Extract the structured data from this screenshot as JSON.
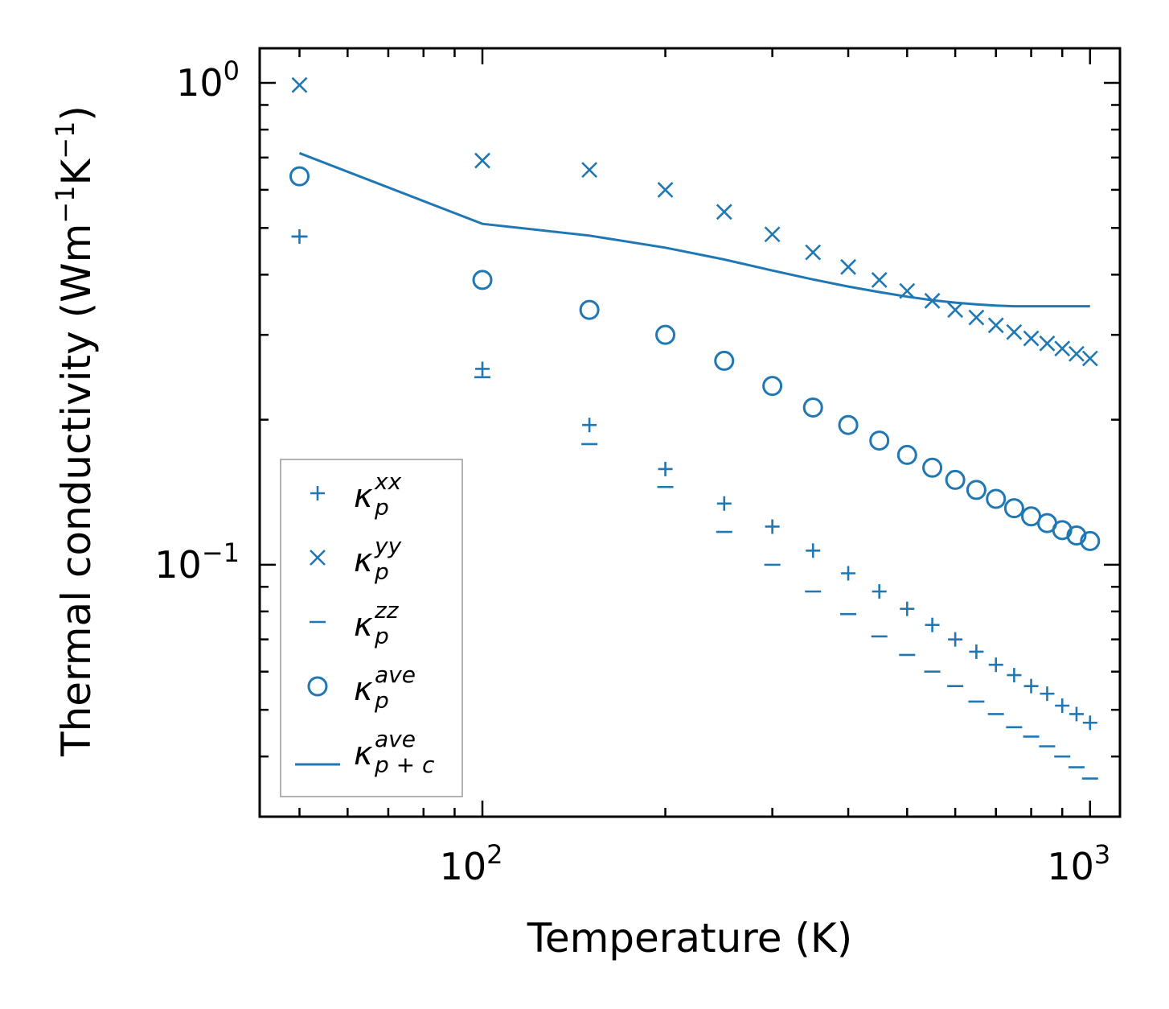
{
  "chart_data": {
    "type": "scatter",
    "xscale": "log",
    "yscale": "log",
    "xlabel": "Temperature (K)",
    "ylabel_main": "Thermal conductivity (Wm",
    "ylabel_sup1": "−1",
    "ylabel_mid": "K",
    "ylabel_sup2": "−1",
    "ylabel_end": ")",
    "xlim": [
      43,
      1120
    ],
    "ylim": [
      0.03,
      1.18
    ],
    "xticks": [
      {
        "value": 100,
        "base": "10",
        "exp": "2"
      },
      {
        "value": 1000,
        "base": "10",
        "exp": "3"
      }
    ],
    "yticks": [
      {
        "value": 0.1,
        "base": "10",
        "exp": "−1"
      },
      {
        "value": 1.0,
        "base": "10",
        "exp": "0"
      }
    ],
    "x": [
      50,
      100,
      150,
      200,
      250,
      300,
      350,
      400,
      450,
      500,
      550,
      600,
      650,
      700,
      750,
      800,
      850,
      900,
      950,
      1000
    ],
    "series": [
      {
        "key": "xx",
        "marker": "plus",
        "values": [
          0.48,
          0.255,
          0.195,
          0.158,
          0.134,
          0.12,
          0.107,
          0.096,
          0.088,
          0.081,
          0.075,
          0.07,
          0.066,
          0.062,
          0.059,
          0.056,
          0.054,
          0.051,
          0.049,
          0.047
        ]
      },
      {
        "key": "yy",
        "marker": "x",
        "values": [
          0.99,
          0.69,
          0.66,
          0.6,
          0.54,
          0.485,
          0.445,
          0.415,
          0.39,
          0.37,
          0.353,
          0.338,
          0.326,
          0.314,
          0.304,
          0.295,
          0.288,
          0.281,
          0.274,
          0.268
        ]
      },
      {
        "key": "zz",
        "marker": "minus",
        "values": [
          0.48,
          0.245,
          0.178,
          0.145,
          0.117,
          0.1,
          0.088,
          0.079,
          0.071,
          0.065,
          0.06,
          0.056,
          0.052,
          0.049,
          0.046,
          0.044,
          0.042,
          0.04,
          0.038,
          0.036
        ]
      },
      {
        "key": "ave",
        "marker": "circle",
        "values": [
          0.64,
          0.39,
          0.338,
          0.3,
          0.265,
          0.235,
          0.212,
          0.195,
          0.181,
          0.169,
          0.159,
          0.15,
          0.143,
          0.137,
          0.131,
          0.126,
          0.122,
          0.118,
          0.115,
          0.112
        ]
      },
      {
        "key": "ave_pc",
        "marker": "line",
        "x": [
          50,
          100,
          150,
          200,
          250,
          300,
          350,
          400,
          450,
          500,
          550,
          600,
          650,
          700,
          750,
          800,
          850,
          900,
          950,
          1000
        ],
        "values": [
          0.715,
          0.51,
          0.482,
          0.455,
          0.43,
          0.408,
          0.391,
          0.378,
          0.368,
          0.36,
          0.354,
          0.35,
          0.347,
          0.345,
          0.344,
          0.344,
          0.344,
          0.344,
          0.344,
          0.344
        ]
      }
    ],
    "legend": [
      {
        "marker": "plus",
        "sym": "κ",
        "sub": "p",
        "sup": "xx"
      },
      {
        "marker": "x",
        "sym": "κ",
        "sub": "p",
        "sup": "yy"
      },
      {
        "marker": "minus",
        "sym": "κ",
        "sub": "p",
        "sup": "zz"
      },
      {
        "marker": "circle",
        "sym": "κ",
        "sub": "p",
        "sup": "ave"
      },
      {
        "marker": "line",
        "sym": "κ",
        "sub": "p + c",
        "sup": "ave"
      }
    ],
    "legend_position": "lower-left",
    "color": "#1f77b4"
  }
}
